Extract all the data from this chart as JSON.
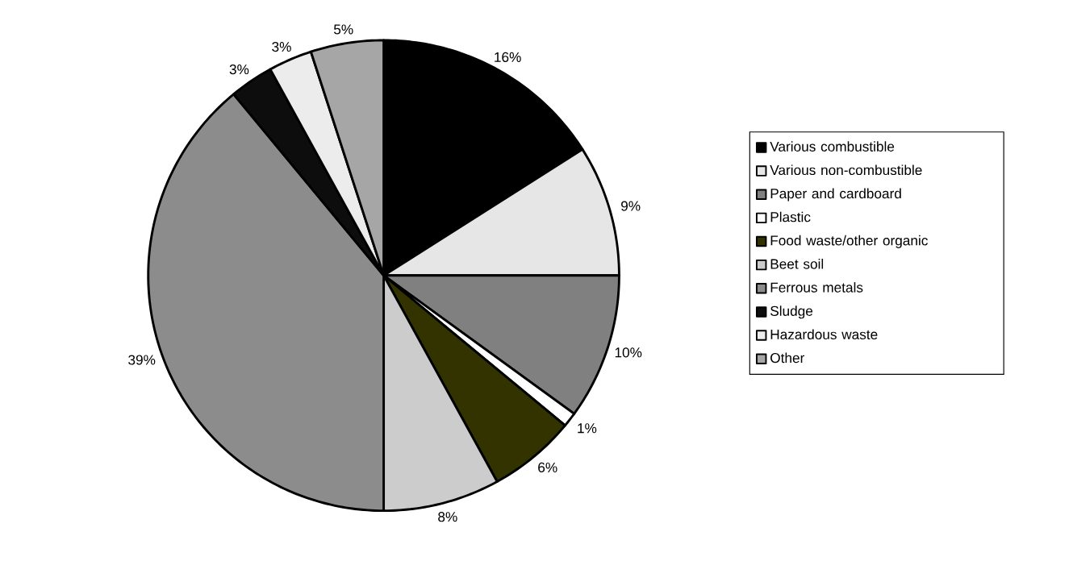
{
  "chart_data": {
    "type": "pie",
    "categories": [
      "Various combustible",
      "Various non-combustible",
      "Paper and cardboard",
      "Plastic",
      "Food waste/other organic",
      "Beet soil",
      "Ferrous metals",
      "Sludge",
      "Hazardous waste",
      "Other"
    ],
    "values": [
      16,
      9,
      10,
      1,
      6,
      8,
      39,
      3,
      3,
      5
    ],
    "value_labels": [
      "16%",
      "9%",
      "10%",
      "1%",
      "6%",
      "8%",
      "39%",
      "3%",
      "3%",
      "5%"
    ],
    "colors": [
      "#000000",
      "#e6e6e6",
      "#808080",
      "#ffffff",
      "#333300",
      "#cccccc",
      "#8c8c8c",
      "#0d0d0d",
      "#ececec",
      "#a6a6a6"
    ],
    "legend": "right"
  }
}
